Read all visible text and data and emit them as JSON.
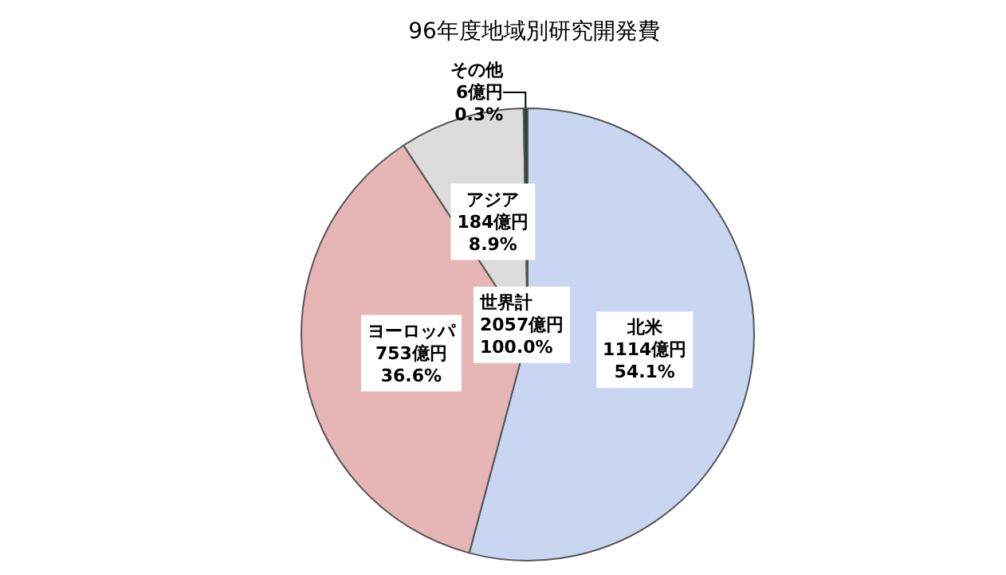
{
  "chart_data": {
    "type": "pie",
    "title": "96年度地域別研究開発費",
    "categories": [
      "北米",
      "ヨーロッパ",
      "アジア",
      "その他"
    ],
    "values": [
      1114,
      753,
      184,
      6
    ],
    "value_labels": [
      "1114億円\n54.1%",
      "753億円\n36.6%",
      "184億円\n8.9%",
      "6億円\n0.3%"
    ],
    "colors": [
      "#c9d6f2",
      "#e6b5b5",
      "#dcdcdc",
      "#1f4a2a"
    ],
    "annotations": [
      "世界計\n2057億円\n100.0%"
    ],
    "legend": false
  }
}
